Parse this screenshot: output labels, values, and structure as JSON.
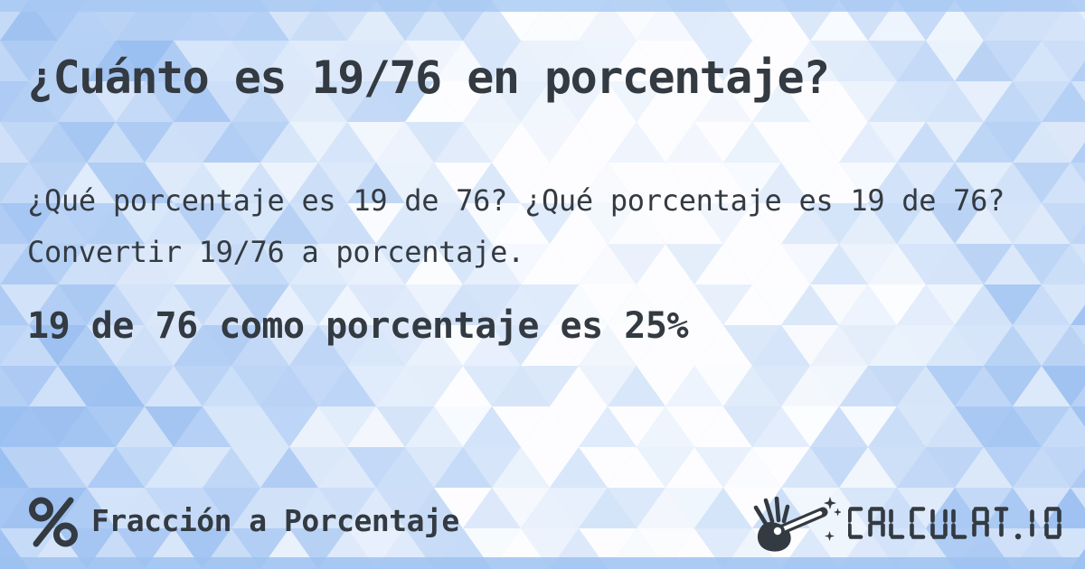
{
  "title": "¿Cuánto es 19/76 en porcentaje?",
  "description": "¿Qué porcentaje es 19 de 76? ¿Qué porcentaje es 19 de 76? Convertir 19/76 a porcentaje.",
  "answer": "19 de 76 como porcentaje es 25%",
  "footer": {
    "category_icon": "percent-icon",
    "category_label": "Fracción a Porcentaje",
    "logo": {
      "icon": "hand-magic-wand-icon",
      "text": "CALCULAT.IO"
    }
  },
  "theme": {
    "ink": "#333a41",
    "background_blue": "#86b2ee",
    "background_white": "#ffffff",
    "top_strip": "#a6c8f3",
    "bottom_strip": "#9dc2f0"
  }
}
